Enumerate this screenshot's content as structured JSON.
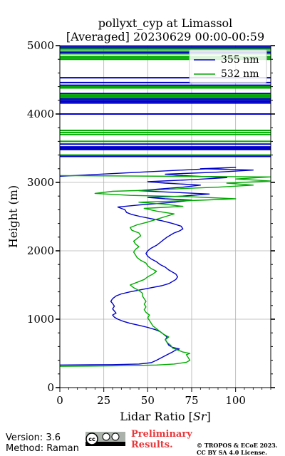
{
  "chart_data": {
    "type": "line",
    "title": "pollyxt_cyp at Limassol",
    "subtitle": "[Averaged] 20230629 00:00-00:59",
    "xlabel": "Lidar Ratio [",
    "xlabel_unit": "Sr",
    "xlabel_end": "]",
    "ylabel": "Height (m)",
    "xlim": [
      0,
      120
    ],
    "ylim": [
      0,
      5000
    ],
    "x_ticks": [
      "0",
      "25",
      "50",
      "75",
      "100"
    ],
    "y_ticks": [
      "0",
      "1000",
      "2000",
      "3000",
      "4000",
      "5000"
    ],
    "grid": true,
    "legend": "top-right",
    "series": [
      {
        "name": "355 nm",
        "color": "#0000cc",
        "points": [
          [
            0,
            330
          ],
          [
            30,
            335
          ],
          [
            45,
            345
          ],
          [
            52,
            365
          ],
          [
            55,
            400
          ],
          [
            58,
            440
          ],
          [
            61,
            480
          ],
          [
            64,
            520
          ],
          [
            66,
            550
          ],
          [
            68,
            565
          ],
          [
            64,
            590
          ],
          [
            62,
            620
          ],
          [
            61,
            660
          ],
          [
            60,
            700
          ],
          [
            61,
            740
          ],
          [
            59,
            780
          ],
          [
            57,
            820
          ],
          [
            54,
            850
          ],
          [
            50,
            880
          ],
          [
            45,
            910
          ],
          [
            40,
            940
          ],
          [
            36,
            970
          ],
          [
            33,
            1000
          ],
          [
            31,
            1030
          ],
          [
            30,
            1060
          ],
          [
            32,
            1090
          ],
          [
            31,
            1120
          ],
          [
            30,
            1150
          ],
          [
            31,
            1190
          ],
          [
            30,
            1230
          ],
          [
            29,
            1260
          ],
          [
            30,
            1300
          ],
          [
            32,
            1340
          ],
          [
            35,
            1370
          ],
          [
            40,
            1400
          ],
          [
            46,
            1430
          ],
          [
            52,
            1460
          ],
          [
            58,
            1490
          ],
          [
            62,
            1520
          ],
          [
            64,
            1550
          ],
          [
            66,
            1580
          ],
          [
            67,
            1620
          ],
          [
            66,
            1660
          ],
          [
            64,
            1690
          ],
          [
            62,
            1720
          ],
          [
            60,
            1760
          ],
          [
            57,
            1800
          ],
          [
            55,
            1840
          ],
          [
            52,
            1880
          ],
          [
            50,
            1920
          ],
          [
            49,
            1960
          ],
          [
            50,
            2000
          ],
          [
            52,
            2040
          ],
          [
            55,
            2080
          ],
          [
            57,
            2120
          ],
          [
            59,
            2160
          ],
          [
            61,
            2200
          ],
          [
            63,
            2230
          ],
          [
            65,
            2260
          ],
          [
            68,
            2290
          ],
          [
            70,
            2320
          ],
          [
            69,
            2360
          ],
          [
            64,
            2400
          ],
          [
            58,
            2440
          ],
          [
            52,
            2470
          ],
          [
            46,
            2500
          ],
          [
            41,
            2530
          ],
          [
            38,
            2560
          ],
          [
            37,
            2600
          ],
          [
            33,
            2640
          ],
          [
            45,
            2670
          ],
          [
            55,
            2690
          ],
          [
            65,
            2710
          ],
          [
            75,
            2740
          ],
          [
            60,
            2760
          ],
          [
            50,
            2780
          ],
          [
            70,
            2800
          ],
          [
            85,
            2830
          ],
          [
            60,
            2860
          ],
          [
            45,
            2880
          ],
          [
            55,
            2900
          ],
          [
            70,
            2930
          ],
          [
            80,
            2960
          ],
          [
            60,
            2990
          ],
          [
            50,
            3010
          ],
          [
            75,
            3040
          ],
          [
            95,
            3070
          ],
          [
            70,
            3100
          ],
          [
            60,
            3120
          ],
          [
            90,
            3150
          ],
          [
            110,
            3180
          ],
          [
            80,
            3200
          ],
          [
            100,
            3220
          ],
          [
            0,
            3090
          ]
        ],
        "bars": [
          3380,
          3480,
          3500,
          3520,
          3560,
          4000,
          4160,
          4180,
          4200,
          4220,
          4300,
          4420,
          4460,
          4530,
          4900,
          4960,
          4980
        ]
      },
      {
        "name": "532 nm",
        "color": "#00aa00",
        "points": [
          [
            0,
            310
          ],
          [
            35,
            320
          ],
          [
            55,
            330
          ],
          [
            65,
            345
          ],
          [
            72,
            370
          ],
          [
            74,
            400
          ],
          [
            73,
            440
          ],
          [
            72,
            480
          ],
          [
            74,
            500
          ],
          [
            70,
            520
          ],
          [
            67,
            550
          ],
          [
            64,
            580
          ],
          [
            63,
            620
          ],
          [
            61,
            660
          ],
          [
            60,
            700
          ],
          [
            62,
            740
          ],
          [
            59,
            780
          ],
          [
            57,
            820
          ],
          [
            55,
            860
          ],
          [
            53,
            900
          ],
          [
            52,
            940
          ],
          [
            51,
            980
          ],
          [
            50,
            1020
          ],
          [
            51,
            1060
          ],
          [
            49,
            1100
          ],
          [
            48,
            1140
          ],
          [
            49,
            1180
          ],
          [
            48,
            1220
          ],
          [
            49,
            1260
          ],
          [
            48,
            1300
          ],
          [
            47,
            1340
          ],
          [
            47,
            1380
          ],
          [
            45,
            1420
          ],
          [
            42,
            1460
          ],
          [
            40,
            1500
          ],
          [
            44,
            1540
          ],
          [
            48,
            1580
          ],
          [
            50,
            1620
          ],
          [
            53,
            1660
          ],
          [
            55,
            1700
          ],
          [
            52,
            1740
          ],
          [
            50,
            1780
          ],
          [
            49,
            1820
          ],
          [
            46,
            1860
          ],
          [
            44,
            1900
          ],
          [
            43,
            1940
          ],
          [
            42,
            1980
          ],
          [
            43,
            2020
          ],
          [
            45,
            2060
          ],
          [
            43,
            2100
          ],
          [
            42,
            2140
          ],
          [
            44,
            2180
          ],
          [
            46,
            2220
          ],
          [
            45,
            2260
          ],
          [
            41,
            2300
          ],
          [
            40,
            2340
          ],
          [
            44,
            2380
          ],
          [
            50,
            2420
          ],
          [
            55,
            2460
          ],
          [
            60,
            2500
          ],
          [
            65,
            2540
          ],
          [
            55,
            2580
          ],
          [
            48,
            2620
          ],
          [
            70,
            2650
          ],
          [
            60,
            2680
          ],
          [
            45,
            2710
          ],
          [
            80,
            2740
          ],
          [
            100,
            2760
          ],
          [
            75,
            2790
          ],
          [
            40,
            2810
          ],
          [
            20,
            2840
          ],
          [
            30,
            2870
          ],
          [
            55,
            2890
          ],
          [
            70,
            2910
          ],
          [
            90,
            2930
          ],
          [
            110,
            2960
          ],
          [
            95,
            2990
          ],
          [
            120,
            3020
          ],
          [
            100,
            3050
          ],
          [
            120,
            3080
          ],
          [
            0,
            3100
          ]
        ],
        "bars": [
          3400,
          3600,
          3700,
          3730,
          3760,
          4240,
          4260,
          4280,
          4380,
          4400,
          4800,
          4820,
          4840,
          4880,
          4920,
          4950
        ]
      }
    ]
  },
  "footer": {
    "version": "Version: 3.6",
    "method": "Method: Raman",
    "preliminary_line1": "Preliminary",
    "preliminary_line2": "Results.",
    "copyright_line1": "© TROPOS & ECoE 2023.",
    "copyright_line2": "CC BY SA 4.0 License.",
    "license_badge": "cc-by-sa-badge"
  }
}
